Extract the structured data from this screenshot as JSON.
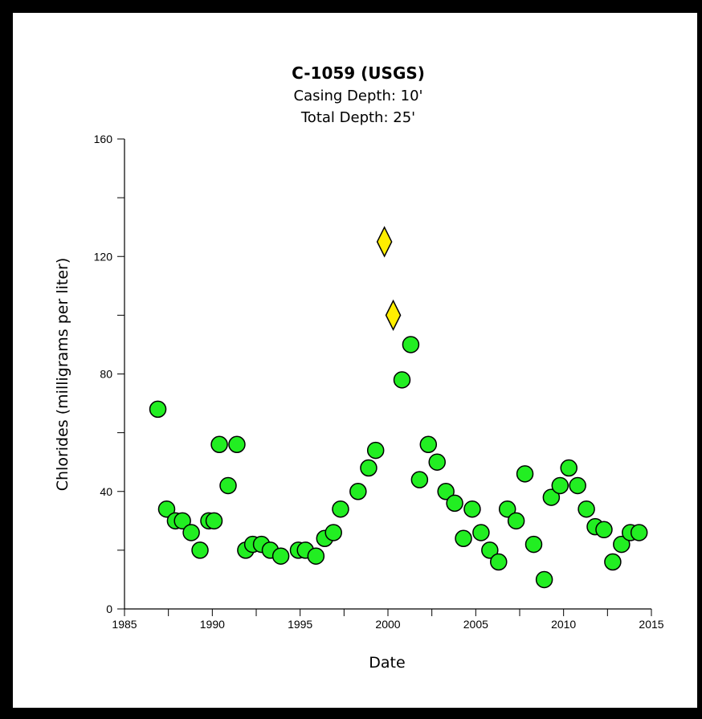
{
  "chart_data": {
    "type": "scatter",
    "title": "C-1059 (USGS)",
    "subtitle_lines": [
      "Casing Depth:  10'",
      "Total Depth:  25'"
    ],
    "xlabel": "Date",
    "ylabel": "Chlorides (milligrams per liter)",
    "xlim": [
      1985,
      2015
    ],
    "ylim": [
      0,
      160
    ],
    "x_ticks": [
      1985,
      1990,
      1995,
      2000,
      2005,
      2010,
      2015
    ],
    "y_ticks": [
      0,
      40,
      80,
      120,
      160
    ],
    "grid": false,
    "series": [
      {
        "marker": "circle",
        "color": "#22ee22",
        "points": [
          [
            1986.9,
            68
          ],
          [
            1987.4,
            34
          ],
          [
            1987.9,
            30
          ],
          [
            1988.3,
            30
          ],
          [
            1988.8,
            26
          ],
          [
            1989.3,
            20
          ],
          [
            1989.8,
            30
          ],
          [
            1990.1,
            30
          ],
          [
            1990.4,
            56
          ],
          [
            1990.9,
            42
          ],
          [
            1991.4,
            56
          ],
          [
            1991.9,
            20
          ],
          [
            1992.3,
            22
          ],
          [
            1992.8,
            22
          ],
          [
            1993.3,
            20
          ],
          [
            1993.9,
            18
          ],
          [
            1994.9,
            20
          ],
          [
            1995.3,
            20
          ],
          [
            1995.9,
            18
          ],
          [
            1996.4,
            24
          ],
          [
            1996.9,
            26
          ],
          [
            1997.3,
            34
          ],
          [
            1998.3,
            40
          ],
          [
            1998.9,
            48
          ],
          [
            1999.3,
            54
          ],
          [
            2000.8,
            78
          ],
          [
            2001.3,
            90
          ],
          [
            2001.8,
            44
          ],
          [
            2002.3,
            56
          ],
          [
            2002.8,
            50
          ],
          [
            2003.3,
            40
          ],
          [
            2003.8,
            36
          ],
          [
            2004.3,
            24
          ],
          [
            2004.8,
            34
          ],
          [
            2005.3,
            26
          ],
          [
            2005.8,
            20
          ],
          [
            2006.3,
            16
          ],
          [
            2006.8,
            34
          ],
          [
            2007.3,
            30
          ],
          [
            2007.8,
            46
          ],
          [
            2008.3,
            22
          ],
          [
            2008.9,
            10
          ],
          [
            2009.3,
            38
          ],
          [
            2009.8,
            42
          ],
          [
            2010.3,
            48
          ],
          [
            2010.8,
            42
          ],
          [
            2011.3,
            34
          ],
          [
            2011.8,
            28
          ],
          [
            2012.3,
            27
          ],
          [
            2012.8,
            16
          ],
          [
            2013.3,
            22
          ],
          [
            2013.8,
            26
          ],
          [
            2014.3,
            26
          ]
        ]
      },
      {
        "marker": "diamond",
        "color": "#ffee00",
        "points": [
          [
            1999.8,
            125
          ],
          [
            2000.3,
            100
          ]
        ]
      }
    ]
  }
}
